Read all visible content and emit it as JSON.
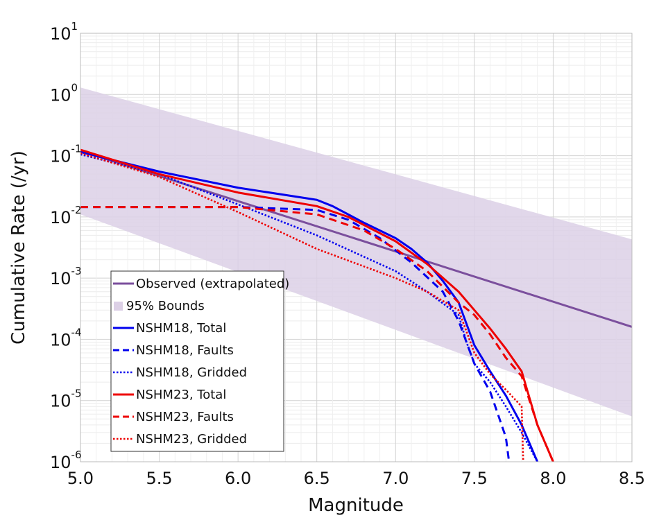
{
  "chart_data": {
    "type": "line",
    "xlabel": "Magnitude",
    "ylabel": "Cumulative Rate (/yr)",
    "xlim": [
      5.0,
      8.5
    ],
    "ylim": [
      1e-06,
      10
    ],
    "yscale": "log",
    "grid": true,
    "legend_placement": "bottom-left",
    "x_ticks": [
      "5.0",
      "5.5",
      "6.0",
      "6.5",
      "7.0",
      "7.5",
      "8.0",
      "8.5"
    ],
    "y_ticks": [
      {
        "base": "10",
        "exp": "-6",
        "value": 1e-06
      },
      {
        "base": "10",
        "exp": "-5",
        "value": 1e-05
      },
      {
        "base": "10",
        "exp": "-4",
        "value": 0.0001
      },
      {
        "base": "10",
        "exp": "-3",
        "value": 0.001
      },
      {
        "base": "10",
        "exp": "-2",
        "value": 0.01
      },
      {
        "base": "10",
        "exp": "-1",
        "value": 0.1
      },
      {
        "base": "10",
        "exp": "0",
        "value": 1
      },
      {
        "base": "10",
        "exp": "1",
        "value": 10
      }
    ],
    "band": {
      "name": "95% Bounds",
      "color": "#dcd0e6",
      "x": [
        5.0,
        8.5
      ],
      "lower": [
        0.011,
        5.5e-06
      ],
      "upper": [
        1.3,
        0.0043
      ]
    },
    "series": [
      {
        "name": "Observed (extrapolated)",
        "color": "#7b4f9d",
        "dash": "solid",
        "x": [
          5.0,
          8.5
        ],
        "y": [
          0.12,
          0.00016
        ]
      },
      {
        "name": "NSHM18, Total",
        "color": "#0000ee",
        "dash": "solid",
        "x": [
          5.0,
          5.5,
          6.0,
          6.5,
          6.6,
          6.8,
          7.0,
          7.1,
          7.2,
          7.3,
          7.4,
          7.5,
          7.6,
          7.7,
          7.8,
          7.9
        ],
        "y": [
          0.115,
          0.055,
          0.03,
          0.019,
          0.015,
          0.008,
          0.0045,
          0.003,
          0.0018,
          0.0009,
          0.0004,
          8e-05,
          3e-05,
          1.2e-05,
          4e-06,
          1e-06
        ]
      },
      {
        "name": "NSHM18, Faults",
        "color": "#0000ee",
        "dash": "dashed",
        "x": [
          5.0,
          6.0,
          6.5,
          6.7,
          6.9,
          7.1,
          7.3,
          7.4,
          7.5,
          7.6,
          7.7,
          7.72
        ],
        "y": [
          0.0145,
          0.0145,
          0.013,
          0.009,
          0.0045,
          0.0018,
          0.0006,
          0.0002,
          4e-05,
          1.4e-05,
          2.5e-06,
          1e-06
        ]
      },
      {
        "name": "NSHM18, Gridded",
        "color": "#0000ee",
        "dash": "dotted",
        "x": [
          5.0,
          5.5,
          6.0,
          6.5,
          7.0,
          7.2,
          7.4,
          7.45,
          7.5,
          7.6,
          7.7,
          7.8,
          7.9
        ],
        "y": [
          0.105,
          0.05,
          0.016,
          0.005,
          0.0013,
          0.0006,
          0.00025,
          9e-05,
          4e-05,
          2e-05,
          8e-06,
          3e-06,
          1e-06
        ]
      },
      {
        "name": "NSHM23, Total",
        "color": "#ee0000",
        "dash": "solid",
        "x": [
          5.0,
          5.5,
          6.0,
          6.5,
          6.7,
          7.0,
          7.2,
          7.4,
          7.5,
          7.6,
          7.7,
          7.8,
          7.9,
          8.0
        ],
        "y": [
          0.125,
          0.05,
          0.025,
          0.015,
          0.01,
          0.004,
          0.0017,
          0.0006,
          0.0003,
          0.00015,
          7e-05,
          3e-05,
          4e-06,
          1e-06
        ]
      },
      {
        "name": "NSHM23, Faults",
        "color": "#ee0000",
        "dash": "dashed",
        "x": [
          5.0,
          6.0,
          6.5,
          6.8,
          7.0,
          7.2,
          7.4,
          7.5,
          7.6,
          7.7,
          7.8,
          7.9,
          8.0
        ],
        "y": [
          0.0145,
          0.0145,
          0.011,
          0.006,
          0.003,
          0.0013,
          0.0004,
          0.00025,
          0.00012,
          5e-05,
          2.5e-05,
          4e-06,
          1e-06
        ]
      },
      {
        "name": "NSHM23, Gridded",
        "color": "#ee0000",
        "dash": "dotted",
        "x": [
          5.0,
          5.5,
          6.0,
          6.5,
          7.0,
          7.2,
          7.4,
          7.5,
          7.6,
          7.7,
          7.8,
          7.81
        ],
        "y": [
          0.11,
          0.045,
          0.012,
          0.003,
          0.001,
          0.0006,
          0.0003,
          6e-05,
          2.7e-05,
          1.5e-05,
          8e-06,
          1e-06
        ]
      }
    ],
    "legend": [
      {
        "label": "Observed (extrapolated)",
        "kind": "line",
        "color": "#7b4f9d",
        "dash": "solid"
      },
      {
        "label": "95% Bounds",
        "kind": "patch",
        "color": "#dcd0e6",
        "dash": "solid"
      },
      {
        "label": "NSHM18, Total",
        "kind": "line",
        "color": "#0000ee",
        "dash": "solid"
      },
      {
        "label": "NSHM18, Faults",
        "kind": "line",
        "color": "#0000ee",
        "dash": "dashed"
      },
      {
        "label": "NSHM18, Gridded",
        "kind": "line",
        "color": "#0000ee",
        "dash": "dotted"
      },
      {
        "label": "NSHM23, Total",
        "kind": "line",
        "color": "#ee0000",
        "dash": "solid"
      },
      {
        "label": "NSHM23, Faults",
        "kind": "line",
        "color": "#ee0000",
        "dash": "dashed"
      },
      {
        "label": "NSHM23, Gridded",
        "kind": "line",
        "color": "#ee0000",
        "dash": "dotted"
      }
    ]
  }
}
